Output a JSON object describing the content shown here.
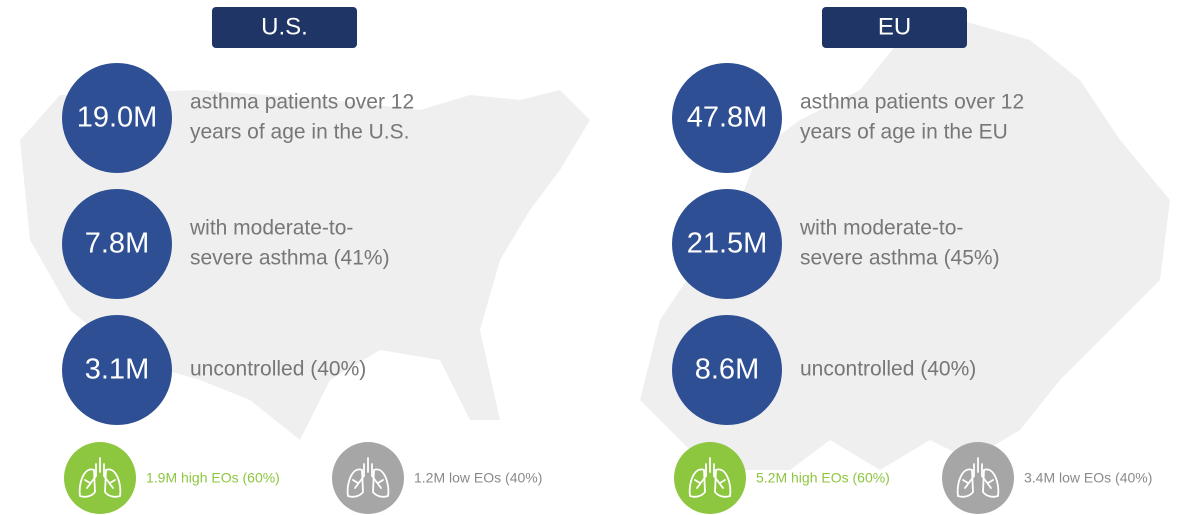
{
  "panels": [
    {
      "title": "U.S.",
      "stats": [
        {
          "value": "19.0M",
          "lines": [
            "asthma patients over 12",
            "years of age in the U.S."
          ]
        },
        {
          "value": "7.8M",
          "lines": [
            "with moderate-to-",
            "severe asthma (41%)"
          ]
        },
        {
          "value": "3.1M",
          "lines": [
            "uncontrolled (40%)"
          ]
        }
      ],
      "eos": [
        {
          "label": "1.9M high EOs (60%)",
          "color": "#8dc63f"
        },
        {
          "label": "1.2M low EOs (40%)",
          "color": "#a6a6a6"
        }
      ]
    },
    {
      "title": "EU",
      "stats": [
        {
          "value": "47.8M",
          "lines": [
            "asthma patients over 12",
            "years of age in the EU"
          ]
        },
        {
          "value": "21.5M",
          "lines": [
            "with moderate-to-",
            "severe asthma (45%)"
          ]
        },
        {
          "value": "8.6M",
          "lines": [
            "uncontrolled (40%)"
          ]
        }
      ],
      "eos": [
        {
          "label": "5.2M high EOs (60%)",
          "color": "#8dc63f"
        },
        {
          "label": "3.4M low EOs (40%)",
          "color": "#a6a6a6"
        }
      ]
    }
  ]
}
